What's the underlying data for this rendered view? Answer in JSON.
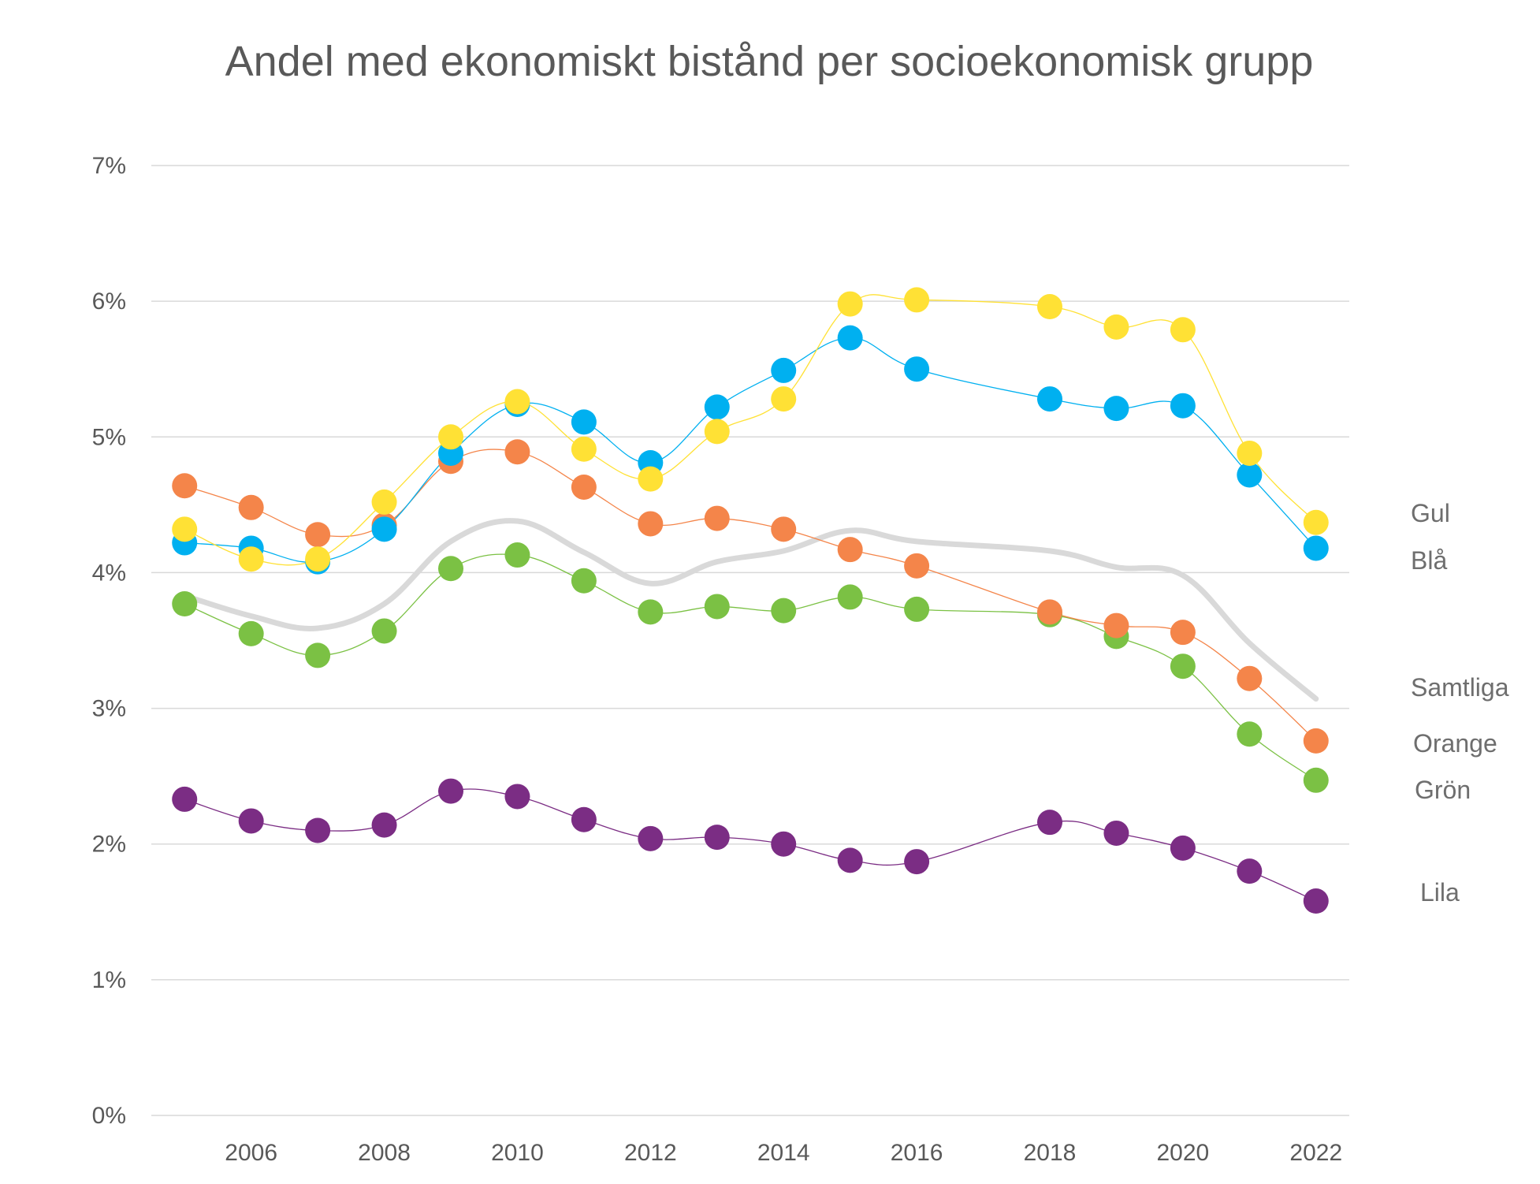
{
  "chart_data": {
    "type": "line",
    "title": "Andel med ekonomiskt bistånd per socioekonomisk grupp",
    "xlabel": "",
    "ylabel": "",
    "xlim": [
      2004.5,
      2022.5
    ],
    "ylim": [
      0,
      0.07
    ],
    "grid": true,
    "x_ticks": [
      "2006",
      "2008",
      "2010",
      "2012",
      "2014",
      "2016",
      "2018",
      "2020",
      "2022"
    ],
    "y_ticks": [
      "0%",
      "1%",
      "2%",
      "3%",
      "4%",
      "5%",
      "6%",
      "7%"
    ],
    "series": [
      {
        "name": "Gul",
        "color": "#FFE135",
        "markers": true,
        "line_width": 1.2,
        "x": [
          2005,
          2006,
          2007,
          2008,
          2009,
          2010,
          2011,
          2012,
          2013,
          2014,
          2015,
          2016,
          2018,
          2019,
          2020,
          2021,
          2022
        ],
        "values": [
          4.32,
          4.1,
          4.1,
          4.52,
          5.0,
          5.26,
          4.91,
          4.69,
          5.04,
          5.28,
          5.98,
          6.01,
          5.96,
          5.81,
          5.79,
          4.88,
          4.37
        ]
      },
      {
        "name": "Blå",
        "color": "#00B0F0",
        "markers": true,
        "line_width": 1.2,
        "x": [
          2005,
          2006,
          2007,
          2008,
          2009,
          2010,
          2011,
          2012,
          2013,
          2014,
          2015,
          2016,
          2018,
          2019,
          2020,
          2021,
          2022
        ],
        "values": [
          4.22,
          4.18,
          4.08,
          4.32,
          4.88,
          5.24,
          5.11,
          4.81,
          5.22,
          5.49,
          5.73,
          5.5,
          5.28,
          5.21,
          5.23,
          4.72,
          4.18
        ]
      },
      {
        "name": "Samtliga",
        "color": "#D9D9D9",
        "markers": false,
        "line_width": 6,
        "x": [
          2005,
          2006,
          2007,
          2008,
          2009,
          2010,
          2011,
          2012,
          2013,
          2014,
          2015,
          2016,
          2018,
          2019,
          2020,
          2021,
          2022
        ],
        "values": [
          3.83,
          3.68,
          3.59,
          3.77,
          4.23,
          4.38,
          4.15,
          3.92,
          4.08,
          4.16,
          4.31,
          4.23,
          4.16,
          4.04,
          3.98,
          3.48,
          3.07
        ]
      },
      {
        "name": "Orange",
        "color": "#F4854A",
        "markers": true,
        "line_width": 1.2,
        "x": [
          2005,
          2006,
          2007,
          2008,
          2009,
          2010,
          2011,
          2012,
          2013,
          2014,
          2015,
          2016,
          2018,
          2019,
          2020,
          2021,
          2022
        ],
        "values": [
          4.64,
          4.48,
          4.28,
          4.35,
          4.82,
          4.89,
          4.63,
          4.36,
          4.4,
          4.32,
          4.17,
          4.05,
          3.71,
          3.61,
          3.56,
          3.22,
          2.76
        ]
      },
      {
        "name": "Grön",
        "color": "#7BC144",
        "markers": true,
        "line_width": 1.2,
        "x": [
          2005,
          2006,
          2007,
          2008,
          2009,
          2010,
          2011,
          2012,
          2013,
          2014,
          2015,
          2016,
          2018,
          2019,
          2020,
          2021,
          2022
        ],
        "values": [
          3.77,
          3.55,
          3.39,
          3.57,
          4.03,
          4.13,
          3.94,
          3.71,
          3.75,
          3.72,
          3.82,
          3.73,
          3.69,
          3.53,
          3.31,
          2.81,
          2.47
        ]
      },
      {
        "name": "Lila",
        "color": "#7B2D84",
        "markers": true,
        "line_width": 1.2,
        "x": [
          2005,
          2006,
          2007,
          2008,
          2009,
          2010,
          2011,
          2012,
          2013,
          2014,
          2015,
          2016,
          2018,
          2019,
          2020,
          2021,
          2022
        ],
        "values": [
          2.33,
          2.17,
          2.1,
          2.14,
          2.39,
          2.35,
          2.18,
          2.04,
          2.05,
          2.0,
          1.88,
          1.87,
          2.16,
          2.08,
          1.97,
          1.8,
          1.58
        ]
      }
    ],
    "series_labels": [
      "Gul",
      "Blå",
      "Samtliga",
      "Orange",
      "Grön",
      "Lila"
    ]
  }
}
